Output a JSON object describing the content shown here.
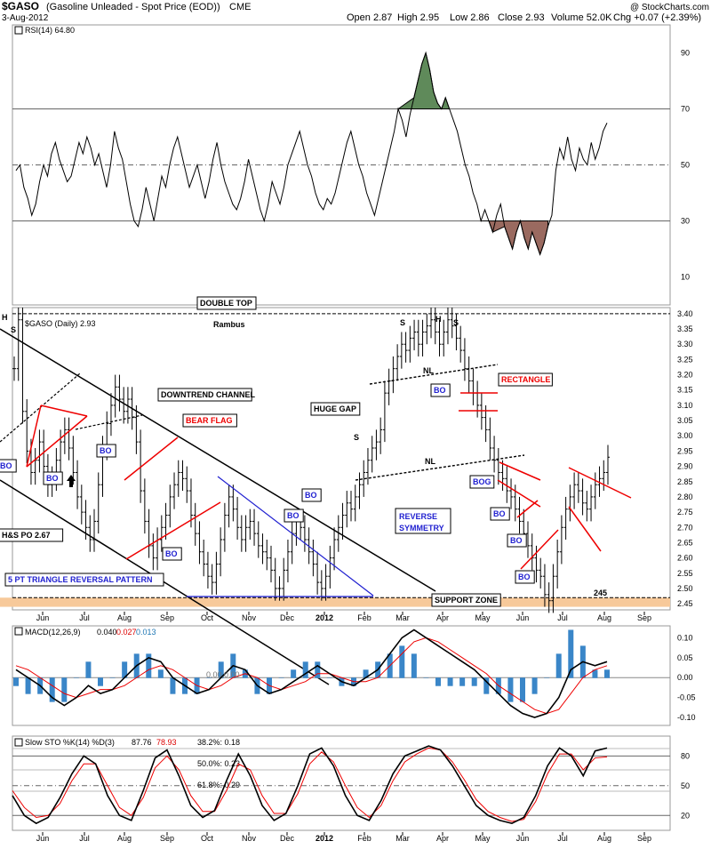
{
  "header": {
    "symbol": "$GASO",
    "name": "(Gasoline Unleaded - Spot Price (EOD))",
    "exchange": "CME",
    "date": "3-Aug-2012",
    "open": "Open 2.87",
    "high": "High 2.95",
    "low": "Low 2.86",
    "close": "Close 2.93",
    "volume": "Volume 52.0K",
    "change": "Chg +0.07 (+2.39%)",
    "watermark": "@ StockCharts.com"
  },
  "chart_data": [
    {
      "type": "line",
      "panel": "RSI",
      "legend": "RSI(14) 64.80",
      "ylim": [
        0,
        100
      ],
      "yticks": [
        10,
        30,
        50,
        70,
        90
      ],
      "reference_lines": [
        30,
        50,
        70
      ],
      "values": [
        48,
        50,
        42,
        38,
        32,
        36,
        44,
        50,
        46,
        54,
        58,
        52,
        48,
        44,
        46,
        52,
        58,
        54,
        60,
        56,
        50,
        54,
        48,
        42,
        50,
        62,
        56,
        52,
        44,
        36,
        30,
        28,
        34,
        42,
        36,
        30,
        38,
        46,
        42,
        50,
        56,
        60,
        54,
        48,
        42,
        46,
        50,
        44,
        38,
        44,
        52,
        58,
        50,
        44,
        40,
        36,
        34,
        38,
        44,
        52,
        46,
        40,
        34,
        30,
        36,
        44,
        40,
        36,
        42,
        50,
        54,
        58,
        62,
        56,
        50,
        46,
        40,
        36,
        34,
        38,
        36,
        40,
        46,
        52,
        58,
        62,
        56,
        50,
        46,
        40,
        36,
        32,
        38,
        44,
        50,
        56,
        62,
        70,
        66,
        60,
        68,
        74,
        80,
        86,
        90,
        84,
        76,
        72,
        70,
        74,
        70,
        66,
        62,
        56,
        50,
        46,
        40,
        36,
        30,
        34,
        30,
        26,
        32,
        36,
        28,
        24,
        20,
        26,
        30,
        24,
        20,
        26,
        22,
        18,
        22,
        28,
        32,
        48,
        56,
        52,
        60,
        52,
        48,
        56,
        52,
        50,
        58,
        52,
        56,
        62,
        65
      ],
      "x_labels": [
        "Jun",
        "Jul",
        "Aug",
        "Sep",
        "Oct",
        "Nov",
        "Dec",
        "2012",
        "Feb",
        "Mar",
        "Apr",
        "May",
        "Jun",
        "Jul",
        "Aug",
        "Sep"
      ]
    },
    {
      "type": "bar",
      "panel": "Price (OHLC)",
      "legend": "$GASO (Daily) 2.93",
      "ylim": [
        2.43,
        3.42
      ],
      "yticks": [
        2.45,
        2.5,
        2.55,
        2.6,
        2.65,
        2.7,
        2.75,
        2.8,
        2.85,
        2.9,
        2.95,
        3.0,
        3.05,
        3.1,
        3.15,
        3.2,
        3.25,
        3.3,
        3.35,
        3.4
      ],
      "values": [
        3.22,
        3.38,
        3.08,
        2.95,
        2.88,
        2.92,
        2.98,
        2.9,
        2.84,
        2.86,
        2.92,
        2.98,
        3.02,
        2.96,
        2.88,
        2.8,
        2.75,
        2.7,
        2.66,
        2.72,
        2.84,
        2.96,
        3.04,
        3.1,
        3.16,
        3.12,
        3.08,
        3.12,
        3.06,
        2.98,
        2.82,
        2.72,
        2.64,
        2.6,
        2.66,
        2.7,
        2.74,
        2.8,
        2.84,
        2.88,
        2.86,
        2.82,
        2.74,
        2.68,
        2.62,
        2.58,
        2.54,
        2.52,
        2.58,
        2.66,
        2.74,
        2.8,
        2.76,
        2.7,
        2.66,
        2.7,
        2.72,
        2.68,
        2.64,
        2.62,
        2.6,
        2.56,
        2.5,
        2.5,
        2.56,
        2.62,
        2.68,
        2.72,
        2.7,
        2.66,
        2.62,
        2.58,
        2.52,
        2.5,
        2.54,
        2.6,
        2.66,
        2.7,
        2.74,
        2.78,
        2.76,
        2.8,
        2.84,
        2.88,
        2.92,
        2.96,
        2.98,
        3.02,
        3.14,
        3.18,
        3.22,
        3.26,
        3.3,
        3.28,
        3.32,
        3.34,
        3.3,
        3.34,
        3.36,
        3.38,
        3.34,
        3.3,
        3.34,
        3.38,
        3.36,
        3.32,
        3.28,
        3.22,
        3.18,
        3.14,
        3.1,
        3.06,
        3.02,
        2.96,
        2.92,
        2.88,
        2.86,
        2.82,
        2.8,
        2.76,
        2.72,
        2.68,
        2.64,
        2.6,
        2.56,
        2.54,
        2.48,
        2.46,
        2.54,
        2.62,
        2.7,
        2.76,
        2.8,
        2.84,
        2.82,
        2.78,
        2.76,
        2.8,
        2.84,
        2.86,
        2.88,
        2.93
      ],
      "annotations": [
        "H",
        "S",
        "DOUBLE TOP",
        "Rambus",
        "S",
        "H",
        "S",
        "NL",
        "RECTANGLE",
        "DOWNTREND CHANNEL",
        "BEAR FLAG",
        "HUGE GAP",
        "S",
        "NL",
        "BO",
        "BO",
        "BO",
        "BO",
        "BO",
        "BO",
        "BOG",
        "BO",
        "BO",
        "BO",
        "BO",
        "H&S PO 2.67",
        "REVERSE",
        "SYMMETRY",
        "5 PT TRIANGLE REVERSAL PATTERN",
        "SUPPORT ZONE",
        "245"
      ],
      "x_labels": [
        "Jun",
        "Jul",
        "Aug",
        "Sep",
        "Oct",
        "Nov",
        "Dec",
        "2012",
        "Feb",
        "Mar",
        "Apr",
        "May",
        "Jun",
        "Jul",
        "Aug",
        "Sep"
      ]
    },
    {
      "type": "line",
      "panel": "MACD",
      "legend": {
        "label": "MACD(12,26,9)",
        "macd": "0.040",
        "signal": "0.027",
        "hist": "0.013"
      },
      "ylim": [
        -0.12,
        0.13
      ],
      "yticks": [
        -0.1,
        -0.05,
        0.0,
        0.05,
        0.1
      ],
      "series": [
        {
          "name": "MACD",
          "values": [
            0.02,
            0.0,
            -0.02,
            -0.05,
            -0.07,
            -0.05,
            -0.02,
            -0.04,
            -0.03,
            0.0,
            0.03,
            0.05,
            0.04,
            0.0,
            -0.02,
            -0.04,
            -0.03,
            0.0,
            0.03,
            0.02,
            -0.02,
            -0.04,
            -0.03,
            -0.01,
            0.01,
            0.03,
            0.01,
            -0.01,
            -0.02,
            0.0,
            0.02,
            0.06,
            0.1,
            0.12,
            0.1,
            0.08,
            0.06,
            0.04,
            0.02,
            -0.01,
            -0.04,
            -0.07,
            -0.09,
            -0.1,
            -0.09,
            -0.05,
            0.02,
            0.04,
            0.03,
            0.04
          ]
        },
        {
          "name": "Signal",
          "values": [
            0.03,
            0.02,
            0.0,
            -0.02,
            -0.04,
            -0.05,
            -0.04,
            -0.03,
            -0.03,
            -0.02,
            0.0,
            0.02,
            0.03,
            0.02,
            0.0,
            -0.02,
            -0.03,
            -0.02,
            0.0,
            0.01,
            0.0,
            -0.02,
            -0.03,
            -0.02,
            -0.01,
            0.01,
            0.01,
            0.0,
            -0.01,
            -0.01,
            0.0,
            0.03,
            0.06,
            0.09,
            0.1,
            0.09,
            0.07,
            0.05,
            0.03,
            0.01,
            -0.02,
            -0.04,
            -0.06,
            -0.08,
            -0.09,
            -0.08,
            -0.04,
            0.0,
            0.02,
            0.03
          ]
        }
      ],
      "zero_label": "0.00,0.00"
    },
    {
      "type": "line",
      "panel": "Slow STO",
      "legend": {
        "label": "Slow STO %K(14) %D(3)",
        "k": "87.76",
        "d": "78.93"
      },
      "ylim": [
        5,
        100
      ],
      "yticks": [
        20,
        50,
        80
      ],
      "reference_lines": [
        20,
        50,
        80
      ],
      "fib_labels": [
        "38.2%: 0.18",
        "50.0%: 0.23",
        "61.8%: 0.29"
      ],
      "series": [
        {
          "name": "%K",
          "values": [
            40,
            20,
            12,
            18,
            38,
            62,
            80,
            72,
            40,
            20,
            15,
            45,
            78,
            86,
            60,
            30,
            18,
            25,
            55,
            82,
            60,
            30,
            15,
            22,
            50,
            82,
            88,
            70,
            40,
            20,
            15,
            35,
            62,
            80,
            85,
            90,
            86,
            70,
            50,
            30,
            20,
            15,
            12,
            18,
            40,
            70,
            88,
            80,
            60,
            85,
            88
          ]
        },
        {
          "name": "%D",
          "values": [
            45,
            28,
            18,
            20,
            32,
            55,
            72,
            72,
            50,
            28,
            20,
            38,
            68,
            80,
            66,
            40,
            24,
            24,
            45,
            72,
            66,
            40,
            22,
            22,
            42,
            72,
            84,
            74,
            50,
            28,
            18,
            30,
            55,
            74,
            82,
            88,
            86,
            74,
            56,
            36,
            24,
            18,
            14,
            16,
            34,
            62,
            82,
            82,
            66,
            78,
            79
          ]
        }
      ]
    }
  ]
}
